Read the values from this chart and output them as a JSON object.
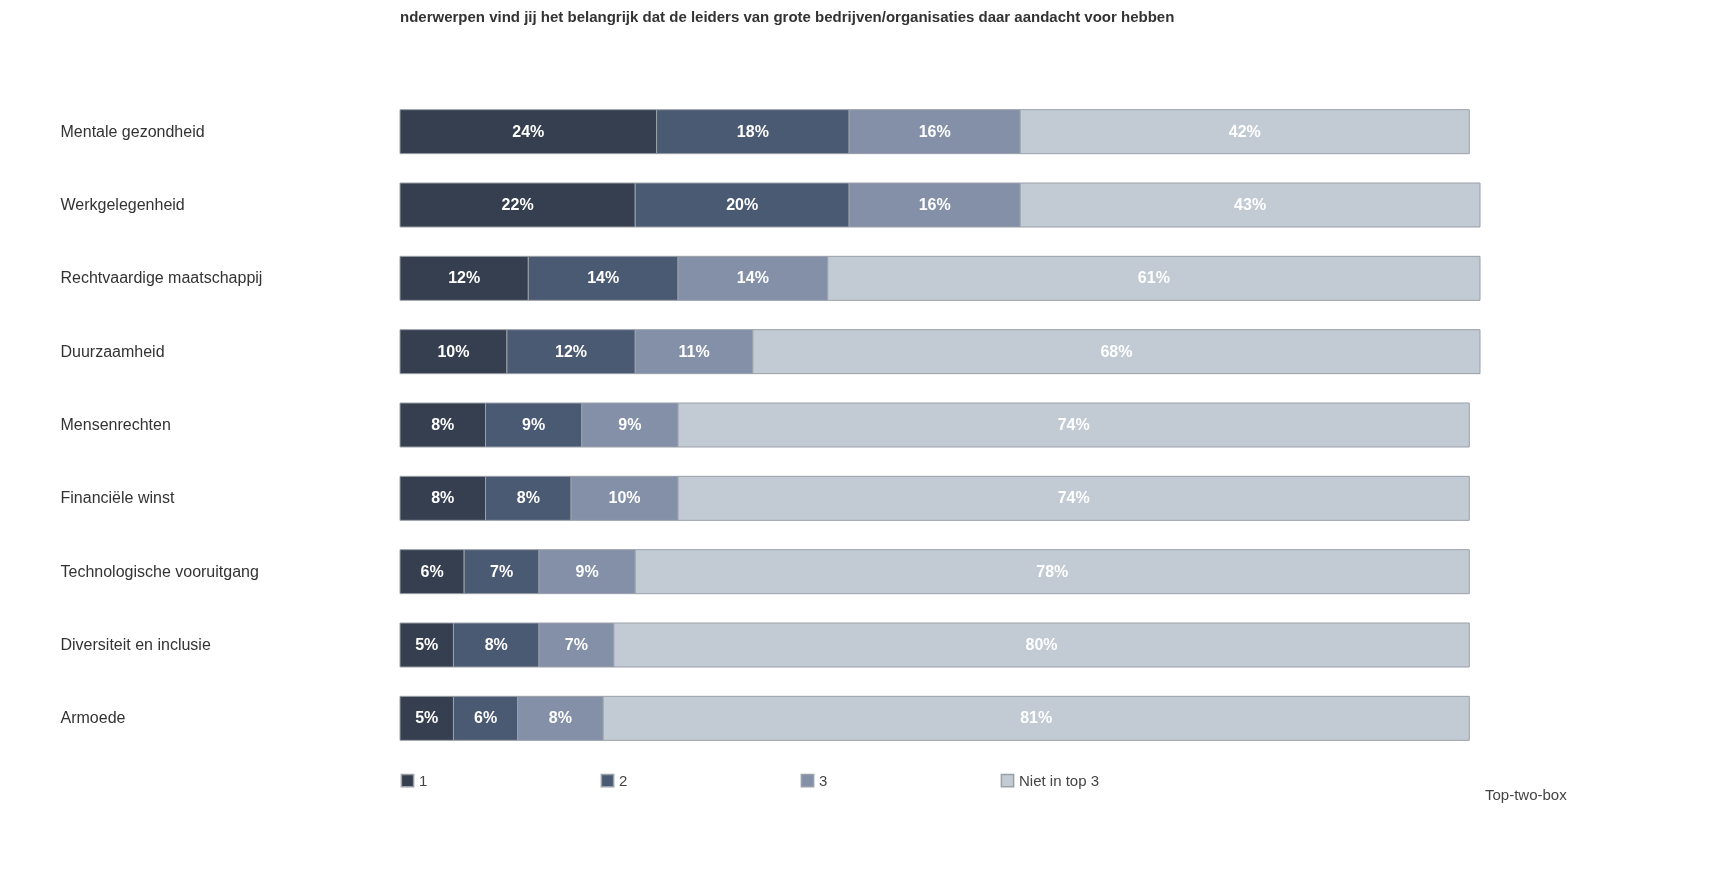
{
  "chart_data": {
    "type": "bar",
    "orientation": "horizontal",
    "stacked": true,
    "legend": "bottom",
    "grid": false,
    "title": "nderwerpen vind jij het belangrijk dat de leiders van grote bedrijven/organisaties daar aandacht voor hebben",
    "categories": [
      "Mentale gezondheid",
      "Werkgelegenheid",
      "Rechtvaardige maatschappij",
      "Duurzaamheid",
      "Mensenrechten",
      "Financiële winst",
      "Technologische vooruitgang",
      "Diversiteit en inclusie",
      "Armoede"
    ],
    "series": [
      {
        "name": "1",
        "color": "#363f4f",
        "values": [
          24,
          22,
          12,
          10,
          8,
          8,
          6,
          5,
          5
        ],
        "value_labels": [
          "24%",
          "22%",
          "12%",
          "10%",
          "8%",
          "8%",
          "6%",
          "5%",
          "5%"
        ]
      },
      {
        "name": "2",
        "color": "#4b5a73",
        "values": [
          18,
          20,
          14,
          12,
          9,
          8,
          7,
          8,
          6
        ],
        "value_labels": [
          "18%",
          "20%",
          "14%",
          "12%",
          "9%",
          "8%",
          "7%",
          "8%",
          "6%"
        ]
      },
      {
        "name": "3",
        "color": "#8390a8",
        "values": [
          16,
          16,
          14,
          11,
          9,
          10,
          9,
          7,
          8
        ],
        "value_labels": [
          "16%",
          "16%",
          "14%",
          "11%",
          "9%",
          "10%",
          "9%",
          "7%",
          "8%"
        ]
      },
      {
        "name": "Niet in top 3",
        "color": "#c2cad3",
        "values": [
          42,
          43,
          61,
          68,
          74,
          74,
          78,
          80,
          81
        ],
        "value_labels": [
          "42%",
          "43%",
          "61%",
          "68%",
          "74%",
          "74%",
          "78%",
          "80%",
          "81%"
        ]
      }
    ],
    "annotations": [
      "Top-two-box"
    ]
  }
}
